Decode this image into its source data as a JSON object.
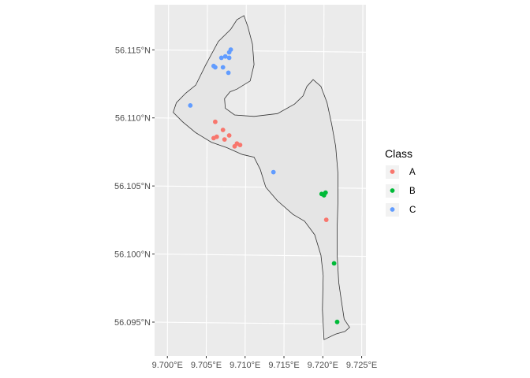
{
  "chart_data": {
    "type": "scatter",
    "title": "",
    "xlabel": "",
    "ylabel": "",
    "xlim": [
      9.6982,
      9.7254
    ],
    "ylim": [
      56.0926,
      56.1184
    ],
    "x_ticks": [
      9.7,
      9.705,
      9.71,
      9.715,
      9.72,
      9.725
    ],
    "x_tick_labels": [
      "9.700°E",
      "9.705°E",
      "9.710°E",
      "9.715°E",
      "9.720°E",
      "9.725°E"
    ],
    "y_ticks": [
      56.095,
      56.1,
      56.105,
      56.11,
      56.115
    ],
    "y_tick_labels": [
      "56.095°N",
      "56.100°N",
      "56.105°N",
      "56.110°N",
      "56.115°N"
    ],
    "grid": true,
    "panel_background": "#ebebeb",
    "grid_color": "#ffffff",
    "legend": {
      "title": "Class",
      "placement": "right",
      "entries": [
        {
          "label": "A",
          "color": "#F8766D"
        },
        {
          "label": "B",
          "color": "#00BA38"
        },
        {
          "label": "C",
          "color": "#619CFF"
        }
      ]
    },
    "boundary_polygon": {
      "fill": "#e5e5e5",
      "stroke": "#333333",
      "points": [
        [
          9.7035,
          56.1125
        ],
        [
          9.7048,
          56.114
        ],
        [
          9.7064,
          56.1157
        ],
        [
          9.708,
          56.1166
        ],
        [
          9.7088,
          56.1173
        ],
        [
          9.7097,
          56.1176
        ],
        [
          9.7102,
          56.1168
        ],
        [
          9.7108,
          56.1155
        ],
        [
          9.711,
          56.114
        ],
        [
          9.7105,
          56.1128
        ],
        [
          9.7088,
          56.1122
        ],
        [
          9.7079,
          56.112
        ],
        [
          9.7072,
          56.1115
        ],
        [
          9.7073,
          56.1108
        ],
        [
          9.7085,
          56.1103
        ],
        [
          9.711,
          56.1102
        ],
        [
          9.714,
          56.1104
        ],
        [
          9.7162,
          56.1111
        ],
        [
          9.7173,
          56.1117
        ],
        [
          9.7178,
          56.1124
        ],
        [
          9.7186,
          56.1129
        ],
        [
          9.7196,
          56.1124
        ],
        [
          9.7204,
          56.1112
        ],
        [
          9.721,
          56.1096
        ],
        [
          9.7215,
          56.108
        ],
        [
          9.7218,
          56.106
        ],
        [
          9.7218,
          56.104
        ],
        [
          9.7217,
          56.102
        ],
        [
          9.7217,
          56.1
        ],
        [
          9.7219,
          56.098
        ],
        [
          9.7222,
          56.0968
        ],
        [
          9.7226,
          56.0953
        ],
        [
          9.7233,
          56.0947
        ],
        [
          9.7227,
          56.0944
        ],
        [
          9.7215,
          56.0942
        ],
        [
          9.72,
          56.0938
        ],
        [
          9.7198,
          56.096
        ],
        [
          9.7199,
          56.0985
        ],
        [
          9.7196,
          56.1
        ],
        [
          9.7188,
          56.1015
        ],
        [
          9.7175,
          56.1025
        ],
        [
          9.716,
          56.103
        ],
        [
          9.714,
          56.104
        ],
        [
          9.7125,
          56.105
        ],
        [
          9.7118,
          56.1063
        ],
        [
          9.711,
          56.1072
        ],
        [
          9.7095,
          56.1074
        ],
        [
          9.7075,
          56.1079
        ],
        [
          9.7055,
          56.1083
        ],
        [
          9.7035,
          56.109
        ],
        [
          9.7018,
          56.1098
        ],
        [
          9.7006,
          56.1105
        ],
        [
          9.701,
          56.1112
        ],
        [
          9.7022,
          56.1119
        ]
      ]
    },
    "series": [
      {
        "name": "A",
        "color": "#F8766D",
        "points": [
          [
            9.706,
            56.1098
          ],
          [
            9.707,
            56.1092
          ],
          [
            9.7078,
            56.1088
          ],
          [
            9.7062,
            56.1087
          ],
          [
            9.7058,
            56.1086
          ],
          [
            9.7072,
            56.1085
          ],
          [
            9.7088,
            56.1082
          ],
          [
            9.7092,
            56.1081
          ],
          [
            9.7085,
            56.108
          ],
          [
            9.7203,
            56.1026
          ]
        ]
      },
      {
        "name": "B",
        "color": "#00BA38",
        "points": [
          [
            9.7202,
            56.1046
          ],
          [
            9.7197,
            56.1045
          ],
          [
            9.72,
            56.1044
          ],
          [
            9.7213,
            56.0994
          ],
          [
            9.7217,
            56.0951
          ]
        ]
      },
      {
        "name": "C",
        "color": "#619CFF",
        "points": [
          [
            9.708,
            56.1151
          ],
          [
            9.7078,
            56.1149
          ],
          [
            9.7073,
            56.1146
          ],
          [
            9.7078,
            56.1145
          ],
          [
            9.7068,
            56.1145
          ],
          [
            9.7058,
            56.1139
          ],
          [
            9.706,
            56.1138
          ],
          [
            9.707,
            56.1138
          ],
          [
            9.7077,
            56.1134
          ],
          [
            9.7028,
            56.111
          ],
          [
            9.7135,
            56.1061
          ]
        ]
      }
    ]
  }
}
